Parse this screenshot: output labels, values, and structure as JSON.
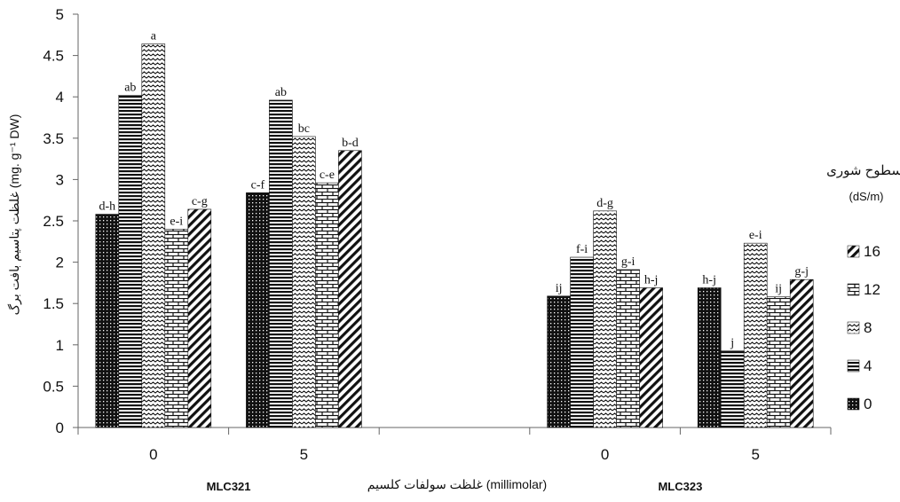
{
  "chart_data": {
    "type": "bar",
    "ylabel": "غلظت پتاسیم بافت برگ (mg. g⁻¹ DW)",
    "xlabel": "غلظت سولفات کلسیم (millimolar)",
    "ylim": [
      0,
      5
    ],
    "yticks": [
      "0",
      "0.5",
      "1",
      "1.5",
      "2",
      "2.5",
      "3",
      "3.5",
      "4",
      "4.5",
      "5"
    ],
    "groups": [
      {
        "name": "MLC321",
        "categories": [
          "0",
          "5"
        ]
      },
      {
        "name": "MLC323",
        "categories": [
          "0",
          "5"
        ]
      }
    ],
    "categories": [
      "0",
      "5",
      "0",
      "5"
    ],
    "legend": {
      "title": "سطوح شوری",
      "subtitle": "(dS/m)",
      "position": "right"
    },
    "series": [
      {
        "name": "0",
        "pattern": "dots",
        "values": [
          2.58,
          2.84,
          1.59,
          1.69
        ],
        "labels": [
          "d-h",
          "c-f",
          "ij",
          "h-j"
        ]
      },
      {
        "name": "4",
        "pattern": "horizontal",
        "values": [
          4.02,
          3.96,
          2.06,
          0.93
        ],
        "labels": [
          "ab",
          "ab",
          "f-i",
          "j"
        ]
      },
      {
        "name": "8",
        "pattern": "wave",
        "values": [
          4.64,
          3.52,
          2.62,
          2.23
        ],
        "labels": [
          "a",
          "bc",
          "d-g",
          "e-i"
        ]
      },
      {
        "name": "12",
        "pattern": "brick",
        "values": [
          2.4,
          2.96,
          1.91,
          1.58
        ],
        "labels": [
          "e-i",
          "c-e",
          "g-i",
          "ij"
        ]
      },
      {
        "name": "16",
        "pattern": "diagonal",
        "values": [
          2.64,
          3.35,
          1.69,
          1.79
        ],
        "labels": [
          "c-g",
          "b-d",
          "h-j",
          "g-j"
        ]
      }
    ]
  }
}
